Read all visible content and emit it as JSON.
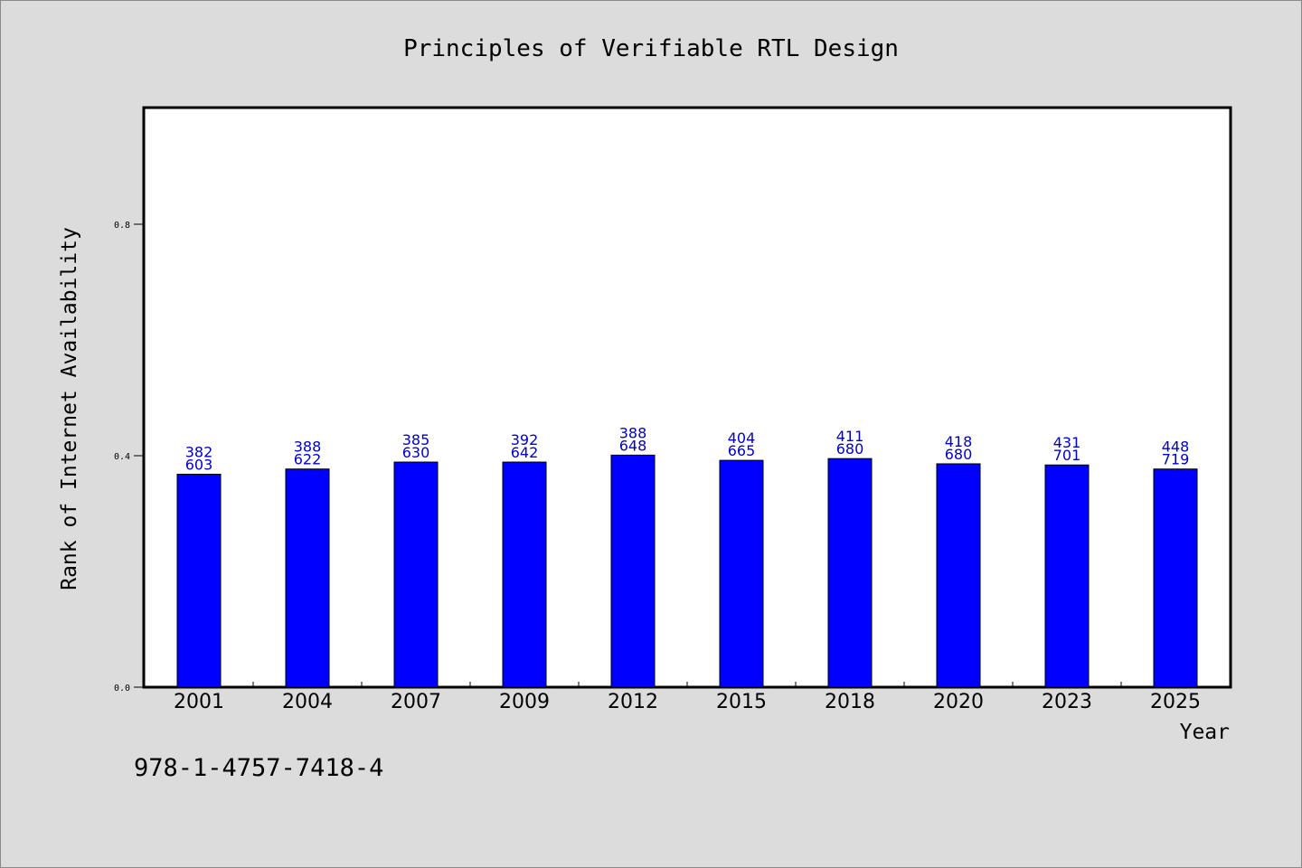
{
  "chart_data": {
    "type": "bar",
    "title": "Principles of Verifiable RTL Design",
    "xlabel": "Year",
    "ylabel": "Rank of Internet Availability",
    "categories": [
      "2001",
      "2004",
      "2007",
      "2009",
      "2012",
      "2015",
      "2018",
      "2020",
      "2023",
      "2025"
    ],
    "values": [
      0.368,
      0.377,
      0.389,
      0.389,
      0.401,
      0.392,
      0.395,
      0.386,
      0.384,
      0.377
    ],
    "bar_labels": [
      [
        "382",
        "603"
      ],
      [
        "388",
        "622"
      ],
      [
        "385",
        "630"
      ],
      [
        "392",
        "642"
      ],
      [
        "388",
        "648"
      ],
      [
        "404",
        "665"
      ],
      [
        "411",
        "680"
      ],
      [
        "418",
        "680"
      ],
      [
        "431",
        "701"
      ],
      [
        "448",
        "719"
      ]
    ],
    "ylim": [
      0,
      1.0
    ],
    "yticks": [
      {
        "value": 0.0,
        "label": "0.0"
      },
      {
        "value": 0.4,
        "label": "0.4"
      },
      {
        "value": 0.8,
        "label": "0.8"
      }
    ],
    "grid": false,
    "bar_color": "#0000ff",
    "label_color": "#0000c8"
  },
  "footer": {
    "isbn": "978-1-4757-7418-4"
  }
}
